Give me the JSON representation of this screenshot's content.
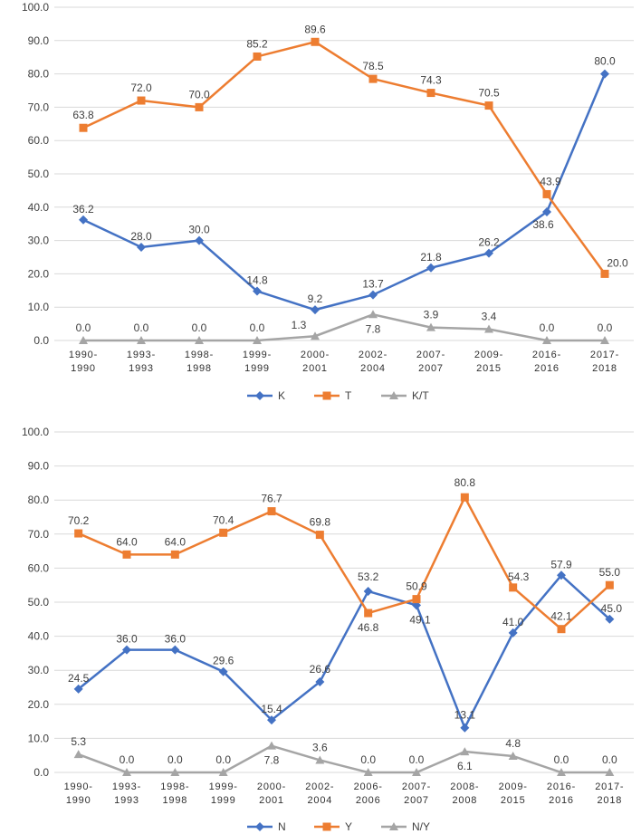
{
  "chart_data": [
    {
      "type": "line",
      "categories": [
        "1990-1990",
        "1993-1993",
        "1998-1998",
        "1999-1999",
        "2000-2001",
        "2002-2004",
        "2007-2007",
        "2009-2015",
        "2016-2016",
        "2017-2018"
      ],
      "ylim": [
        0,
        100
      ],
      "yticks": [
        "0.0",
        "10.0",
        "20.0",
        "30.0",
        "40.0",
        "50.0",
        "60.0",
        "70.0",
        "80.0",
        "90.0",
        "100.0"
      ],
      "grid": true,
      "legend_position": "bottom",
      "series": [
        {
          "name": "K",
          "color": "#4472C4",
          "marker": "diamond",
          "values": [
            36.2,
            28.0,
            30.0,
            14.8,
            9.2,
            13.7,
            21.8,
            26.2,
            38.6,
            80.0
          ],
          "labels": [
            "36.2",
            "28.0",
            "30.0",
            "14.8",
            "9.2",
            "13.7",
            "21.8",
            "26.2",
            "38.6",
            "80.0"
          ]
        },
        {
          "name": "T",
          "color": "#ED7D31",
          "marker": "square",
          "values": [
            63.8,
            72.0,
            70.0,
            85.2,
            89.6,
            78.5,
            74.3,
            70.5,
            43.9,
            20.0
          ],
          "labels": [
            "63.8",
            "72.0",
            "70.0",
            "85.2",
            "89.6",
            "78.5",
            "74.3",
            "70.5",
            "43.9",
            "20.0"
          ]
        },
        {
          "name": "K/T",
          "color": "#A5A5A5",
          "marker": "triangle",
          "values": [
            0.0,
            0.0,
            0.0,
            0.0,
            1.3,
            7.8,
            3.9,
            3.4,
            0.0,
            0.0
          ],
          "labels": [
            "0.0",
            "0.0",
            "0.0",
            "0.0",
            "1.3",
            "7.8",
            "3.9",
            "3.4",
            "0.0",
            "0.0"
          ]
        }
      ]
    },
    {
      "type": "line",
      "categories": [
        "1990-1990",
        "1993-1993",
        "1998-1998",
        "1999-1999",
        "2000-2001",
        "2002-2004",
        "2006-2006",
        "2007-2007",
        "2008-2008",
        "2009-2015",
        "2016-2016",
        "2017-2018"
      ],
      "ylim": [
        0,
        100
      ],
      "yticks": [
        "0.0",
        "10.0",
        "20.0",
        "30.0",
        "40.0",
        "50.0",
        "60.0",
        "70.0",
        "80.0",
        "90.0",
        "100.0"
      ],
      "grid": true,
      "legend_position": "bottom",
      "series": [
        {
          "name": "N",
          "color": "#4472C4",
          "marker": "diamond",
          "values": [
            24.5,
            36.0,
            36.0,
            29.6,
            15.4,
            26.6,
            53.2,
            49.1,
            13.1,
            41.0,
            57.9,
            45.0
          ],
          "labels": [
            "24.5",
            "36.0",
            "36.0",
            "29.6",
            "15.4",
            "26.6",
            "53.2",
            "49.1",
            "13.1",
            "41.0",
            "57.9",
            "45.0"
          ]
        },
        {
          "name": "Y",
          "color": "#ED7D31",
          "marker": "square",
          "values": [
            70.2,
            64.0,
            64.0,
            70.4,
            76.7,
            69.8,
            46.8,
            50.9,
            80.8,
            54.3,
            42.1,
            55.0
          ],
          "labels": [
            "70.2",
            "64.0",
            "64.0",
            "70.4",
            "76.7",
            "69.8",
            "46.8",
            "50.9",
            "80.8",
            "54.3",
            "42.1",
            "55.0"
          ]
        },
        {
          "name": "N/Y",
          "color": "#A5A5A5",
          "marker": "triangle",
          "values": [
            5.3,
            0.0,
            0.0,
            0.0,
            7.8,
            3.6,
            0.0,
            0.0,
            6.1,
            4.8,
            0.0,
            0.0
          ],
          "labels": [
            "5.3",
            "0.0",
            "0.0",
            "0.0",
            "7.8",
            "3.6",
            "0.0",
            "0.0",
            "6.1",
            "4.8",
            "0.0",
            "0.0"
          ]
        }
      ]
    }
  ]
}
